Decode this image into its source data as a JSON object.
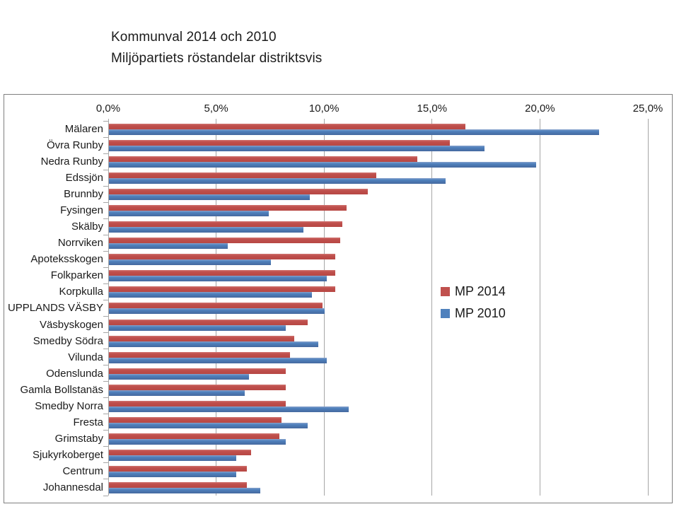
{
  "title": {
    "line1": "Kommunval 2014 och 2010",
    "line2": "Miljöpartiets röstandelar distriktsvis"
  },
  "legend": [
    {
      "label": "MP 2014",
      "color": "#C0504D"
    },
    {
      "label": "MP 2010",
      "color": "#4F81BD"
    }
  ],
  "colors": {
    "mp2014": "#C0504D",
    "mp2010": "#4F81BD",
    "gridline": "#A6A6A6",
    "chart_border": "#7F7F7F"
  },
  "chart_data": {
    "type": "bar",
    "orientation": "horizontal",
    "title": "Kommunval 2014 och 2010 — Miljöpartiets röstandelar distriktsvis",
    "xlabel": "",
    "ylabel": "",
    "xlim": [
      0,
      25
    ],
    "grid": true,
    "legend_position": "middle-right",
    "x_axis_ticks": [
      "0,0%",
      "5,0%",
      "10,0%",
      "15,0%",
      "20,0%",
      "25,0%"
    ],
    "x_axis_tick_values": [
      0,
      5,
      10,
      15,
      20,
      25
    ],
    "categories": [
      "Mälaren",
      "Övra Runby",
      "Nedra Runby",
      "Edssjön",
      "Brunnby",
      "Fysingen",
      "Skälby",
      "Norrviken",
      "Apoteksskogen",
      "Folkparken",
      "Korpkulla",
      "UPPLANDS VÄSBY",
      "Väsbyskogen",
      "Smedby Södra",
      "Vilunda",
      "Odenslunda",
      "Gamla Bollstanäs",
      "Smedby Norra",
      "Fresta",
      "Grimstaby",
      "Sjukyrkoberget",
      "Centrum",
      "Johannesdal"
    ],
    "series": [
      {
        "name": "MP 2014",
        "color": "#C0504D",
        "values": [
          16.5,
          15.8,
          14.3,
          12.4,
          12.0,
          11.0,
          10.8,
          10.7,
          10.5,
          10.5,
          10.5,
          9.9,
          9.2,
          8.6,
          8.4,
          8.2,
          8.2,
          8.2,
          8.0,
          7.9,
          6.6,
          6.4,
          6.4
        ]
      },
      {
        "name": "MP 2010",
        "color": "#4F81BD",
        "values": [
          22.7,
          17.4,
          19.8,
          15.6,
          9.3,
          7.4,
          9.0,
          5.5,
          7.5,
          10.1,
          9.4,
          10.0,
          8.2,
          9.7,
          10.1,
          6.5,
          6.3,
          11.1,
          9.2,
          8.2,
          5.9,
          5.9,
          7.0
        ]
      }
    ]
  }
}
